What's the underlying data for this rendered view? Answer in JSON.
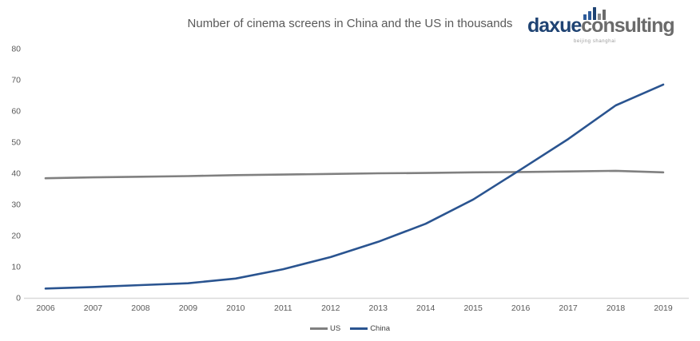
{
  "title": "Number of cinema screens in China and the US in thousands",
  "logo": {
    "part1": "daxue",
    "part2": "consulting",
    "tagline": "beijing shanghai",
    "part1_color": "#1F4373",
    "part2_color": "#6B6B6B",
    "icon_bars": [
      {
        "h": 7,
        "c": "#2D5B9A"
      },
      {
        "h": 11,
        "c": "#2D5B9A"
      },
      {
        "h": 16,
        "c": "#1F4373"
      },
      {
        "h": 8,
        "c": "#8C8C8C"
      },
      {
        "h": 13,
        "c": "#6B6B6B"
      }
    ]
  },
  "chart_data": {
    "type": "line",
    "title": "Number of cinema screens in China and the US in thousands",
    "x": [
      2006,
      2007,
      2008,
      2009,
      2010,
      2011,
      2012,
      2013,
      2014,
      2015,
      2016,
      2017,
      2018,
      2019
    ],
    "series": [
      {
        "name": "US",
        "color": "#808080",
        "values": [
          38.4,
          38.7,
          38.9,
          39.1,
          39.4,
          39.6,
          39.8,
          40.0,
          40.1,
          40.3,
          40.4,
          40.6,
          40.8,
          40.3
        ]
      },
      {
        "name": "China",
        "color": "#2A5490",
        "values": [
          3.0,
          3.5,
          4.1,
          4.7,
          6.2,
          9.2,
          13.1,
          18.0,
          23.8,
          31.6,
          41.2,
          51.0,
          61.8,
          68.5
        ]
      }
    ],
    "xlabel": "",
    "ylabel": "",
    "ylim": [
      0,
      80
    ],
    "yticks": [
      0,
      10,
      20,
      30,
      40,
      50,
      60,
      70,
      80
    ],
    "grid": false,
    "legend_position": "bottom",
    "axis_color": "#D9D9D9",
    "tick_color": "#595959"
  }
}
